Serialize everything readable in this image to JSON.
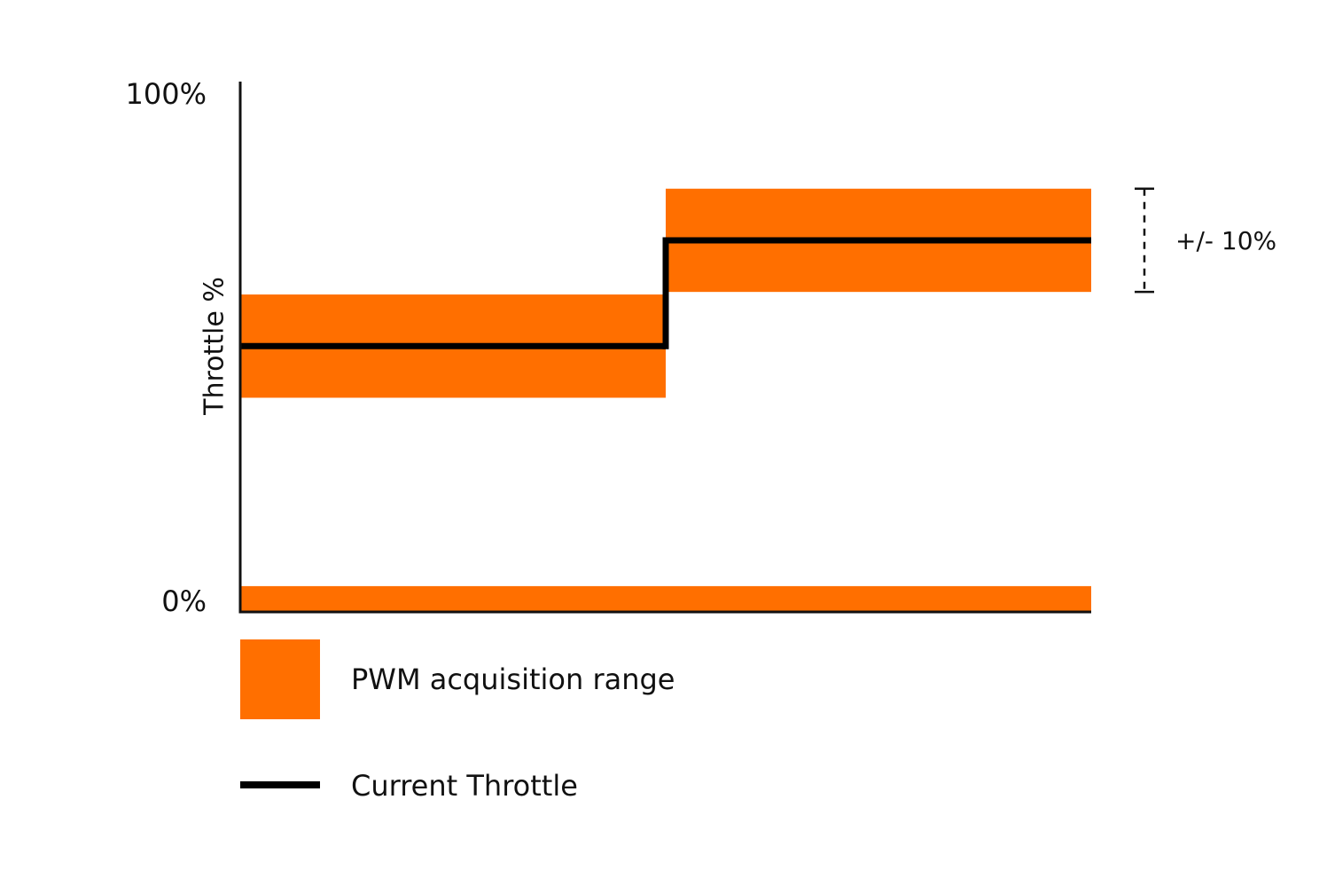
{
  "chart_data": {
    "type": "step",
    "ylabel": "Throttle %",
    "ylim": [
      0,
      100
    ],
    "yticks": [
      {
        "value": 0,
        "label": "0%"
      },
      {
        "value": 100,
        "label": "100%"
      }
    ],
    "series": [
      {
        "name": "Current Throttle",
        "color": "#000000",
        "values": [
          51.5,
          72
        ]
      }
    ],
    "band": {
      "name": "PWM acquisition range",
      "color": "#ff6f00"
    },
    "tolerance": 10,
    "tolerance_label": "+/- 10%",
    "floor_band": [
      0,
      5
    ]
  }
}
